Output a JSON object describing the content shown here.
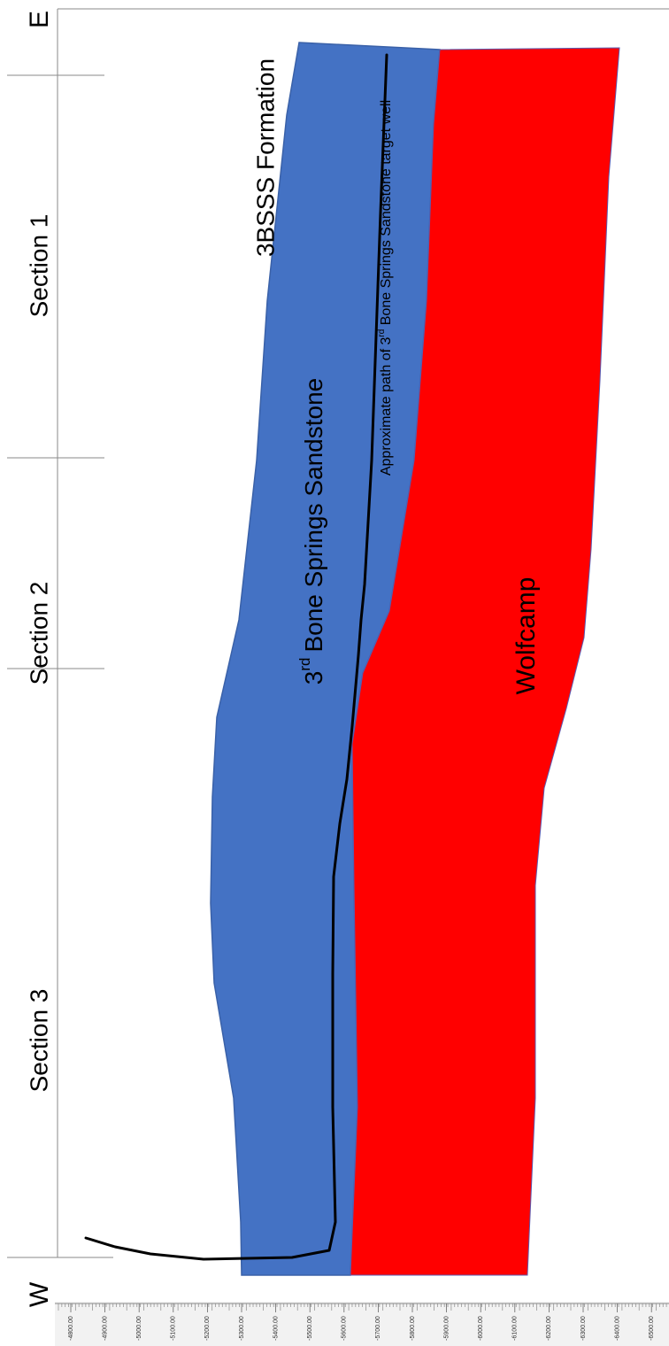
{
  "directions": {
    "east": "E",
    "west": "W"
  },
  "sections": [
    {
      "label": "Section 1"
    },
    {
      "label": "Section 2"
    },
    {
      "label": "Section 3"
    }
  ],
  "layers": {
    "formation": {
      "label": "3BSSS Formation"
    },
    "sandstone": {
      "label_main": "Bone Springs Sandstone",
      "label_num": "3",
      "label_sup": "rd",
      "color": "#4472C4"
    },
    "wolfcamp": {
      "label": "Wolfcamp",
      "color": "#FF0000"
    }
  },
  "well": {
    "label_prefix": "Approximate path of 3",
    "label_sup": "rd",
    "label_suffix": " Bone Springs Sandstone target well",
    "color": "#000000"
  },
  "depth_axis": {
    "ticks": [
      "-4800.00",
      "-4900.00",
      "-5000.00",
      "-5100.00",
      "-5200.00",
      "-5300.00",
      "-5400.00",
      "-5500.00",
      "-5600.00",
      "-5700.00",
      "-5800.00",
      "-5900.00",
      "-6000.00",
      "-6100.00",
      "-6200.00",
      "-6300.00",
      "-6400.00",
      "-6500.00"
    ]
  }
}
